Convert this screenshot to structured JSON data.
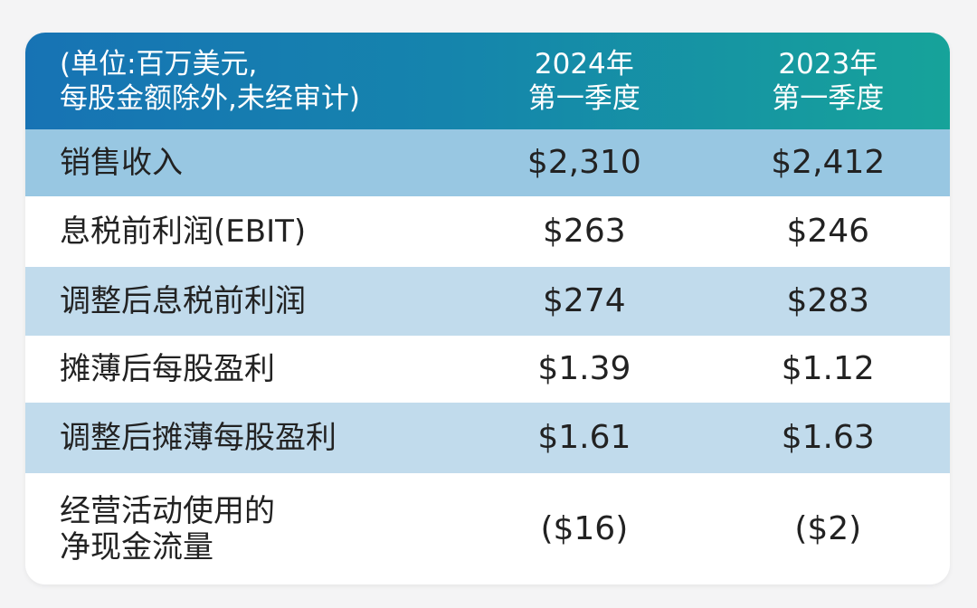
{
  "header": {
    "label_line1": "(单位:百万美元,",
    "label_line2": "每股金额除外,未经审计)",
    "col1_line1": "2024年",
    "col1_line2": "第一季度",
    "col2_line1": "2023年",
    "col2_line2": "第一季度"
  },
  "rows": [
    {
      "label": "销售收入",
      "v2024": "$2,310",
      "v2023": "$2,412"
    },
    {
      "label": "息税前利润(EBIT)",
      "v2024": "$263",
      "v2023": "$246"
    },
    {
      "label": "调整后息税前利润",
      "v2024": "$274",
      "v2023": "$283"
    },
    {
      "label": "摊薄后每股盈利",
      "v2024": "$1.39",
      "v2023": "$1.12"
    },
    {
      "label": "调整后摊薄每股盈利",
      "v2024": "$1.61",
      "v2023": "$1.63"
    },
    {
      "label_line1": "经营活动使用的",
      "label_line2": "净现金流量",
      "v2024": "($16)",
      "v2023": "($2)"
    }
  ],
  "colors": {
    "header_gradient_start": "#1773b4",
    "header_gradient_end": "#16a39a",
    "row_band_dark": "#98c7e2",
    "row_band_light": "#c1dbec"
  }
}
